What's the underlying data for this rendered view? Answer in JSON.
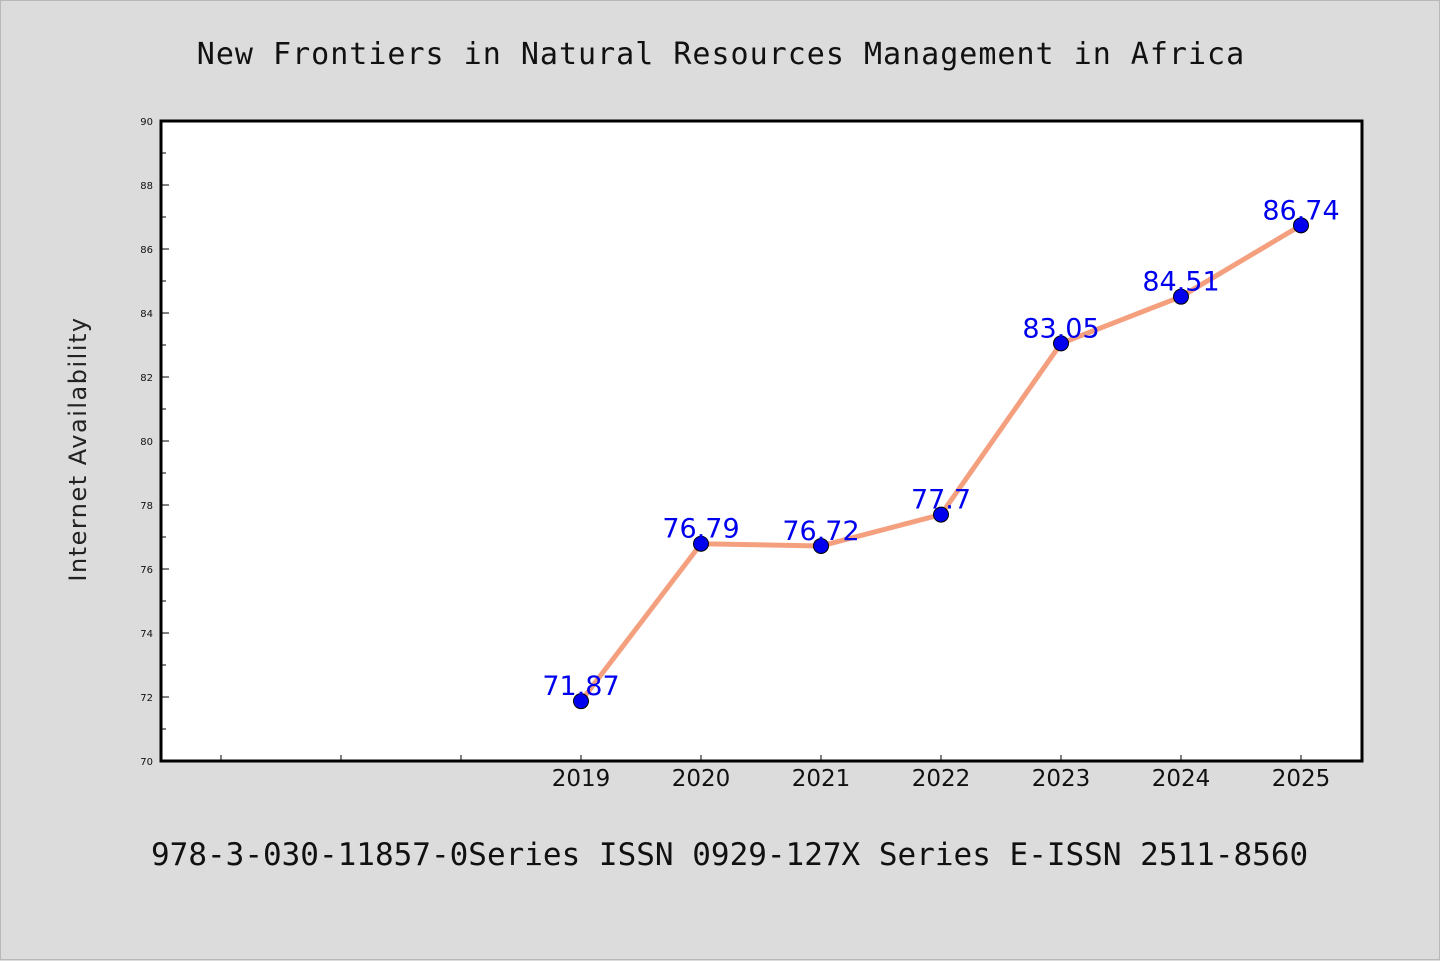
{
  "chart_data": {
    "type": "line",
    "title": "New Frontiers in Natural Resources Management in Africa",
    "ylabel": "Internet Availability",
    "xlabel": "",
    "categories": [
      "2019",
      "2020",
      "2021",
      "2022",
      "2023",
      "2024",
      "2025"
    ],
    "series": [
      {
        "values": [
          71.87,
          76.79,
          76.72,
          77.7,
          83.05,
          84.51,
          86.74
        ],
        "data_labels": [
          "71.87",
          "76.79",
          "76.72",
          "77.7",
          "83.05",
          "84.51",
          "86.74"
        ]
      }
    ],
    "ylim": [
      70,
      90
    ],
    "yticks": [
      70,
      72,
      74,
      76,
      78,
      80,
      82,
      84,
      86,
      88,
      90
    ],
    "x_domain": [
      "",
      "",
      "",
      "2019",
      "2020",
      "2021",
      "2022",
      "2023",
      "2024",
      "2025"
    ],
    "grid": false,
    "legend": "none",
    "footer": "978-3-030-11857-0Series ISSN 0929-127X Series E-ISSN 2511-8560",
    "colors": {
      "line": "#f4a07f",
      "marker": "#0000ee",
      "label": "#0000ee",
      "background": "#dcdcdc",
      "plot_background": "#ffffff"
    }
  }
}
